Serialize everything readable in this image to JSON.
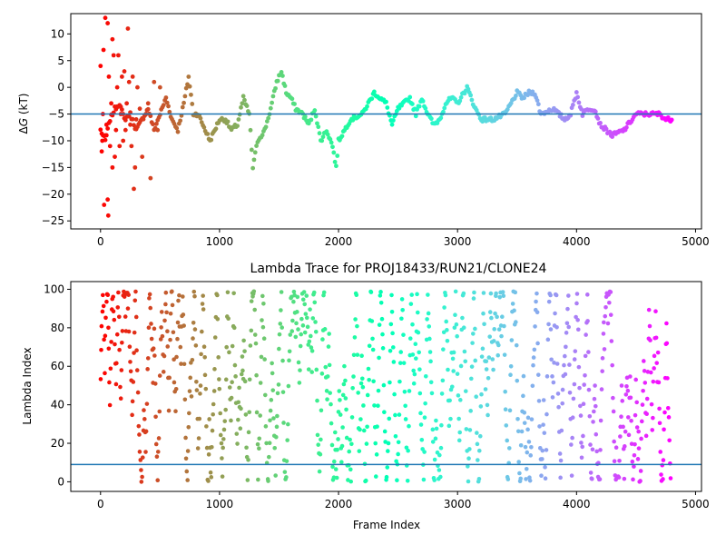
{
  "chart_data": [
    {
      "type": "scatter",
      "title": "",
      "xlabel": "",
      "ylabel": "ΔG (kT)",
      "ylabel_prefix": "Δ",
      "ylabel_italic": "G",
      "ylabel_rest": " (kT)",
      "xlim": [
        -250,
        5050
      ],
      "ylim": [
        -26.5,
        13.8
      ],
      "xticks": [
        0,
        1000,
        2000,
        3000,
        4000,
        5000
      ],
      "yticks": [
        -25,
        -20,
        -15,
        -10,
        -5,
        0,
        5,
        10
      ],
      "hline": -5.0,
      "hline_color": "#1f77b4",
      "colormap": "rainbow (red → purple along frame index)",
      "grid": false,
      "x_start": 0,
      "x_end": 4800,
      "x_step": 10,
      "trace_knots": [
        [
          0,
          -8
        ],
        [
          40,
          -10
        ],
        [
          80,
          -6
        ],
        [
          120,
          -4
        ],
        [
          160,
          -3
        ],
        [
          200,
          -6
        ],
        [
          250,
          -5
        ],
        [
          300,
          -8
        ],
        [
          350,
          -6
        ],
        [
          400,
          -4
        ],
        [
          450,
          -8
        ],
        [
          500,
          -5
        ],
        [
          550,
          -2
        ],
        [
          600,
          -6
        ],
        [
          650,
          -8
        ],
        [
          700,
          -3
        ],
        [
          740,
          2
        ],
        [
          780,
          -5
        ],
        [
          820,
          -5
        ],
        [
          880,
          -8
        ],
        [
          920,
          -10
        ],
        [
          960,
          -8
        ],
        [
          1000,
          -6
        ],
        [
          1050,
          -6
        ],
        [
          1100,
          -8
        ],
        [
          1150,
          -7
        ],
        [
          1200,
          -2
        ],
        [
          1250,
          -5
        ],
        [
          1280,
          -15
        ],
        [
          1320,
          -10
        ],
        [
          1380,
          -8
        ],
        [
          1430,
          -4
        ],
        [
          1480,
          1
        ],
        [
          1520,
          3
        ],
        [
          1560,
          -1
        ],
        [
          1600,
          -2
        ],
        [
          1640,
          -4
        ],
        [
          1700,
          -5
        ],
        [
          1750,
          -7
        ],
        [
          1800,
          -4
        ],
        [
          1850,
          -10
        ],
        [
          1900,
          -8
        ],
        [
          1950,
          -11
        ],
        [
          1980,
          -15
        ],
        [
          2000,
          -10
        ],
        [
          2050,
          -8
        ],
        [
          2100,
          -6
        ],
        [
          2200,
          -5
        ],
        [
          2300,
          -1
        ],
        [
          2350,
          -2
        ],
        [
          2400,
          -3
        ],
        [
          2450,
          -7
        ],
        [
          2500,
          -4
        ],
        [
          2600,
          -2
        ],
        [
          2650,
          -5
        ],
        [
          2700,
          -2
        ],
        [
          2750,
          -5
        ],
        [
          2800,
          -7
        ],
        [
          2850,
          -6
        ],
        [
          2900,
          -3
        ],
        [
          2950,
          -2
        ],
        [
          3000,
          -3
        ],
        [
          3080,
          0
        ],
        [
          3150,
          -4
        ],
        [
          3200,
          -6
        ],
        [
          3300,
          -6
        ],
        [
          3400,
          -5
        ],
        [
          3450,
          -3
        ],
        [
          3500,
          -1
        ],
        [
          3550,
          -2
        ],
        [
          3600,
          -1
        ],
        [
          3650,
          -1
        ],
        [
          3700,
          -5
        ],
        [
          3800,
          -4
        ],
        [
          3900,
          -6
        ],
        [
          3950,
          -5
        ],
        [
          4000,
          -1
        ],
        [
          4050,
          -5
        ],
        [
          4100,
          -4
        ],
        [
          4150,
          -4
        ],
        [
          4200,
          -7
        ],
        [
          4250,
          -8
        ],
        [
          4300,
          -9
        ],
        [
          4400,
          -8
        ],
        [
          4500,
          -5
        ],
        [
          4550,
          -5
        ],
        [
          4600,
          -5
        ],
        [
          4700,
          -5
        ],
        [
          4750,
          -6
        ],
        [
          4800,
          -6
        ]
      ],
      "early_scatter": {
        "x_max": 500,
        "points": [
          [
            0,
            4
          ],
          [
            10,
            -12
          ],
          [
            15,
            -10
          ],
          [
            20,
            -5
          ],
          [
            25,
            7
          ],
          [
            30,
            -22
          ],
          [
            40,
            -9
          ],
          [
            50,
            -7
          ],
          [
            60,
            -21
          ],
          [
            65,
            -24
          ],
          [
            70,
            2
          ],
          [
            80,
            -11
          ],
          [
            90,
            -3
          ],
          [
            100,
            -15
          ],
          [
            110,
            6
          ],
          [
            120,
            -13
          ],
          [
            130,
            -8
          ],
          [
            140,
            0
          ],
          [
            150,
            6
          ],
          [
            160,
            -11
          ],
          [
            170,
            -5
          ],
          [
            180,
            2
          ],
          [
            190,
            -10
          ],
          [
            200,
            3
          ],
          [
            210,
            -8
          ],
          [
            220,
            -3
          ],
          [
            230,
            11
          ],
          [
            240,
            1
          ],
          [
            250,
            -7
          ],
          [
            260,
            -11
          ],
          [
            270,
            2
          ],
          [
            280,
            -19
          ],
          [
            290,
            -15
          ],
          [
            300,
            -6
          ],
          [
            310,
            0
          ],
          [
            330,
            -4
          ],
          [
            350,
            -13
          ],
          [
            380,
            -5
          ],
          [
            400,
            -3
          ],
          [
            420,
            -17
          ],
          [
            450,
            1
          ],
          [
            480,
            -8
          ],
          [
            500,
            0
          ],
          [
            60,
            12
          ],
          [
            100,
            9
          ],
          [
            40,
            13
          ]
        ]
      }
    },
    {
      "type": "scatter",
      "title": "Lambda Trace for PROJ18433/RUN21/CLONE24",
      "xlabel": "Frame Index",
      "ylabel": "Lambda Index",
      "xlim": [
        -250,
        5050
      ],
      "ylim": [
        -5,
        104
      ],
      "xticks": [
        0,
        1000,
        2000,
        3000,
        4000,
        5000
      ],
      "yticks": [
        0,
        20,
        40,
        60,
        80,
        100
      ],
      "hline": 9,
      "hline_color": "#1f77b4",
      "colormap": "rainbow (red → purple along frame index)",
      "grid": false,
      "x_start": 0,
      "x_end": 4790,
      "x_step": 5,
      "value_range": [
        0,
        99
      ]
    }
  ]
}
